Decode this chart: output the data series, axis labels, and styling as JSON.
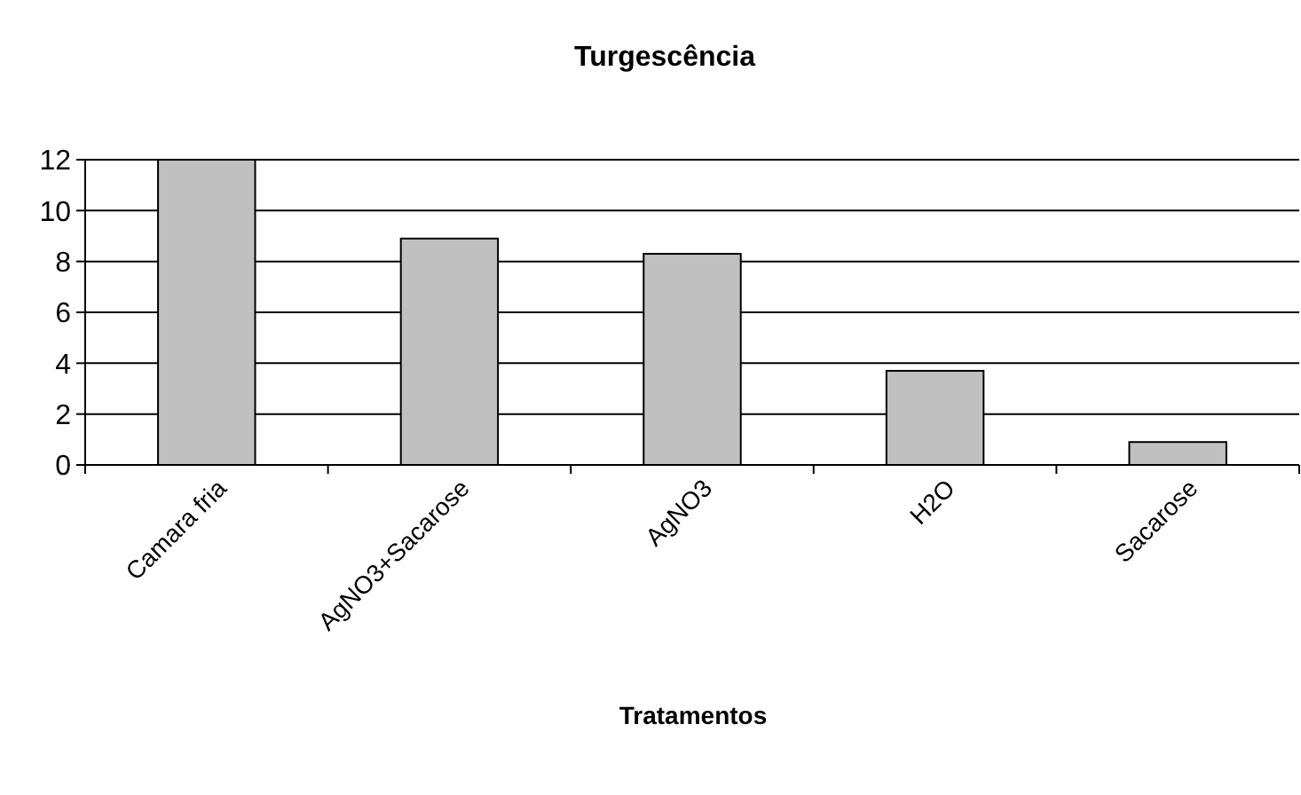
{
  "chart_data": {
    "type": "bar",
    "title": "Turgescência",
    "xlabel": "Tratamentos",
    "categories": [
      "Camara fria",
      "AgNO3+Sacarose",
      "AgNO3",
      "H2O",
      "Sacarose"
    ],
    "values": [
      12,
      8.9,
      8.3,
      3.7,
      0.9
    ],
    "color": "#c0c0c0",
    "ylim": [
      0,
      12
    ],
    "yticks": [
      0,
      2,
      4,
      6,
      8,
      10,
      12
    ],
    "grid": "y"
  }
}
